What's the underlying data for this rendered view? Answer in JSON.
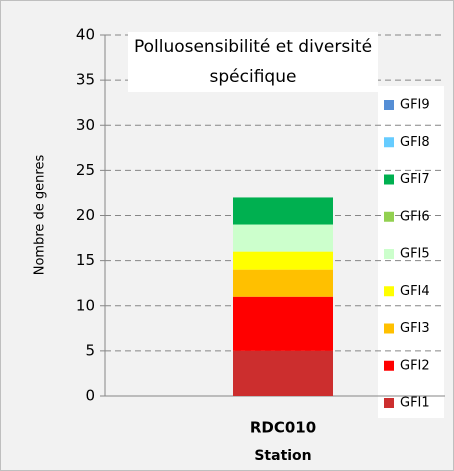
{
  "chart_data": {
    "type": "stacked_bar",
    "title": "Polluosensibilité et diversité spécifique",
    "xlabel": "Station",
    "ylabel": "Nombre de genres",
    "categories": [
      "RDC010"
    ],
    "series": [
      {
        "name": "GFI1",
        "color": "#cc2e2e",
        "values": [
          5
        ]
      },
      {
        "name": "GFI2",
        "color": "#ff0000",
        "values": [
          6
        ]
      },
      {
        "name": "GFI3",
        "color": "#ffc000",
        "values": [
          3
        ]
      },
      {
        "name": "GFI4",
        "color": "#ffff00",
        "values": [
          2
        ]
      },
      {
        "name": "GFI5",
        "color": "#ccffcc",
        "values": [
          3
        ]
      },
      {
        "name": "GFI6",
        "color": "#92d050",
        "values": [
          0
        ]
      },
      {
        "name": "GFI7",
        "color": "#00b050",
        "values": [
          3
        ]
      },
      {
        "name": "GFI8",
        "color": "#66ccff",
        "values": [
          0
        ]
      },
      {
        "name": "GFI9",
        "color": "#558ed5",
        "values": [
          0
        ]
      }
    ],
    "ylim": [
      0,
      40
    ],
    "yticks": [
      0,
      5,
      10,
      15,
      20,
      25,
      30,
      35,
      40
    ],
    "grid": true,
    "legend": "right"
  }
}
